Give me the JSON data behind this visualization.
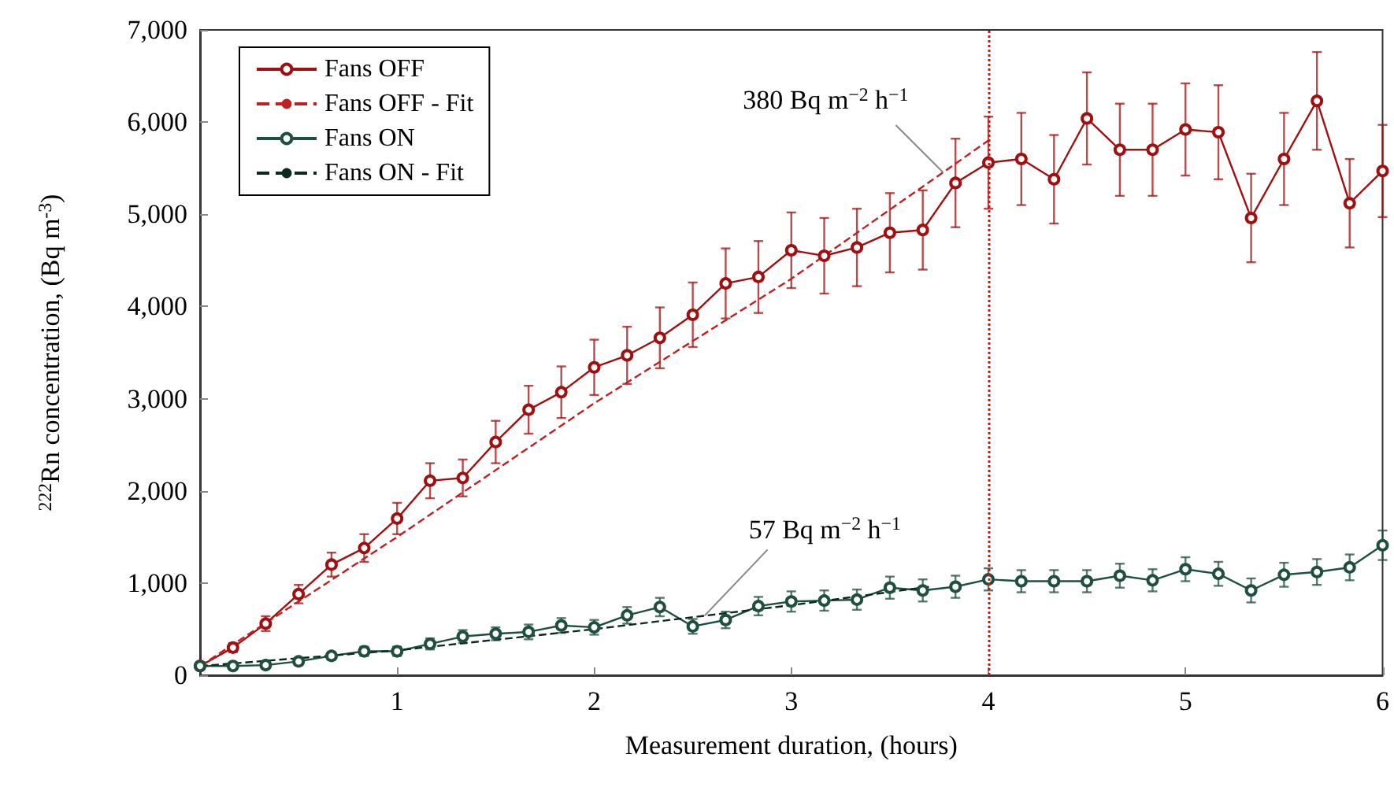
{
  "chart_data": {
    "type": "line",
    "xlabel": "Measurement duration, (hours)",
    "ylabel": "$^{222}$Rn concentration, (Bq m$^{-3}$)",
    "x": [
      0,
      0.167,
      0.333,
      0.5,
      0.667,
      0.833,
      1,
      1.167,
      1.333,
      1.5,
      1.667,
      1.833,
      2,
      2.167,
      2.333,
      2.5,
      2.667,
      2.833,
      3,
      3.167,
      3.333,
      3.5,
      3.667,
      3.833,
      4,
      4.167,
      4.333,
      4.5,
      4.667,
      4.833,
      5,
      5.167,
      5.333,
      5.5,
      5.667,
      5.833,
      6
    ],
    "xlim": [
      0,
      6
    ],
    "xticks": [
      {
        "value": 0,
        "label": null
      },
      1,
      2,
      3,
      4,
      5,
      6
    ],
    "ylim": [
      0,
      7000
    ],
    "yticks": [
      0,
      {
        "value": 1000,
        "label": "1,000"
      },
      {
        "value": 2000,
        "label": "2,000"
      },
      {
        "value": 3000,
        "label": "3,000"
      },
      {
        "value": 4000,
        "label": "4,000"
      },
      {
        "value": 5000,
        "label": "5,000"
      },
      {
        "value": 6000,
        "label": "6,000"
      },
      {
        "value": 7000,
        "label": "7,000"
      }
    ],
    "grid": false,
    "legend": "top left",
    "marker": "circle",
    "series": [
      {
        "name": "Fans OFF",
        "color": "#a01010",
        "values": [
          100,
          300,
          560,
          880,
          1200,
          1380,
          1700,
          2110,
          2140,
          2530,
          2880,
          3070,
          3340,
          3470,
          3660,
          3910,
          4250,
          4320,
          4610,
          4550,
          4640,
          4800,
          4830,
          5340,
          5560,
          5600,
          5380,
          6040,
          5700,
          5700,
          5920,
          5890,
          4960,
          5600,
          6230,
          5120,
          5470
        ],
        "errors": [
          20,
          50,
          80,
          100,
          130,
          150,
          170,
          190,
          200,
          230,
          260,
          280,
          300,
          310,
          330,
          350,
          380,
          390,
          410,
          410,
          420,
          430,
          430,
          480,
          500,
          500,
          480,
          500,
          500,
          500,
          500,
          510,
          480,
          500,
          530,
          480,
          500
        ]
      },
      {
        "name": "Fans OFF - Fit",
        "type": "line",
        "color": "#c02020",
        "line_style": "dashed",
        "marker": "none",
        "x": [
          0,
          1,
          2,
          3,
          4
        ],
        "values": [
          100,
          1500,
          2950,
          4300,
          5800
        ]
      },
      {
        "name": "Fans ON",
        "color": "#1f4f3f",
        "values": [
          100,
          100,
          110,
          150,
          210,
          260,
          260,
          340,
          420,
          450,
          470,
          540,
          520,
          650,
          740,
          530,
          600,
          750,
          800,
          810,
          820,
          950,
          920,
          960,
          1040,
          1020,
          1020,
          1020,
          1080,
          1030,
          1150,
          1100,
          920,
          1090,
          1120,
          1170,
          1410
        ],
        "errors": [
          30,
          30,
          30,
          30,
          40,
          50,
          50,
          60,
          70,
          70,
          80,
          80,
          80,
          90,
          100,
          80,
          90,
          100,
          110,
          110,
          110,
          120,
          120,
          120,
          120,
          120,
          120,
          120,
          130,
          120,
          130,
          130,
          130,
          130,
          140,
          140,
          160
        ]
      },
      {
        "name": "Fans ON - Fit",
        "type": "line",
        "color": "#0a2a20",
        "line_style": "dashed",
        "marker": "none",
        "x": [
          0,
          1,
          2,
          3,
          3.7
        ],
        "values": [
          100,
          270,
          500,
          760,
          960
        ]
      }
    ],
    "ref_lines": [
      {
        "axis": "x",
        "value": 4,
        "color": "#ff0000",
        "line_style": "dotted"
      }
    ],
    "annotations": [
      {
        "text": "380 Bq m$^{−2}$ h$^{−1}$",
        "x": 3.77,
        "y": 5455
      },
      {
        "text": "57 Bq m$^{−2}$ h$^{−1}$",
        "x": 2.56,
        "y": 646
      }
    ]
  }
}
